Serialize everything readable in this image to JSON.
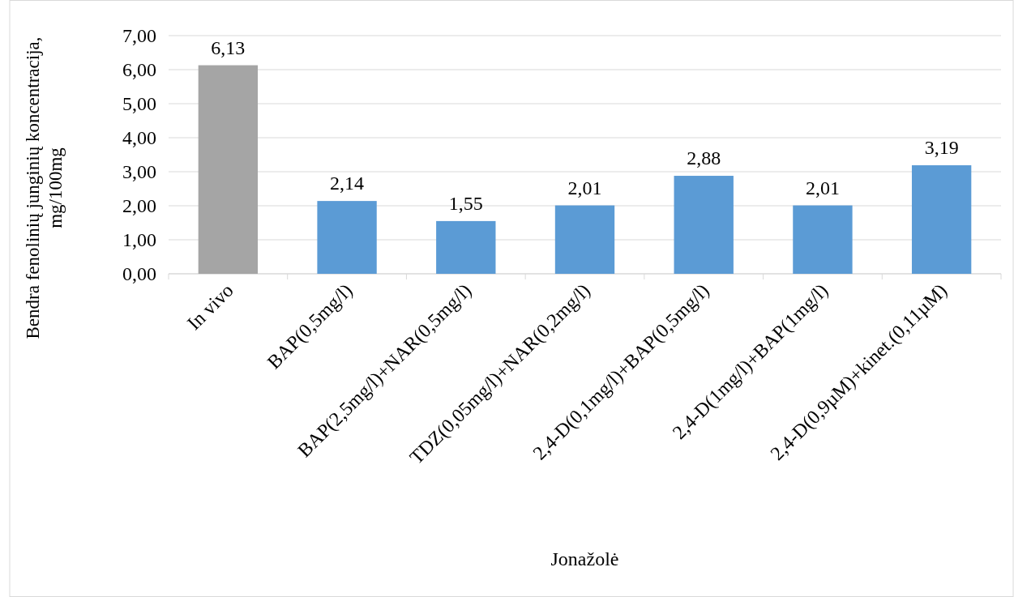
{
  "chart_data": {
    "type": "bar",
    "xlabel": "Jonažolė",
    "ylabel": "Bendra fenolinių junginių koncentracija, mg/100mg",
    "categories": [
      "In vivo",
      "BAP(0,5mg/l)",
      "BAP(2,5mg/l)+NAR(0,5mg/l)",
      "TDZ(0,05mg/l)+NAR(0,2mg/l)",
      "2,4-D(0,1mg/l)+BAP(0,5mg/l)",
      "2,4-D(1mg/l)+BAP(1mg/l)",
      "2,4-D(0,9µM)+kinet.(0,11µM)"
    ],
    "values": [
      6.13,
      2.14,
      1.55,
      2.01,
      2.88,
      2.01,
      3.19
    ],
    "colors": [
      "#a5a5a5",
      "#5b9bd5",
      "#5b9bd5",
      "#5b9bd5",
      "#5b9bd5",
      "#5b9bd5",
      "#5b9bd5"
    ],
    "value_labels": [
      "6,13",
      "2,14",
      "1,55",
      "2,01",
      "2,88",
      "2,01",
      "3,19"
    ],
    "ylim": [
      0,
      7
    ],
    "yticks": [
      {
        "value": 0,
        "label": "0,00"
      },
      {
        "value": 1,
        "label": "1,00"
      },
      {
        "value": 2,
        "label": "2,00"
      },
      {
        "value": 3,
        "label": "3,00"
      },
      {
        "value": 4,
        "label": "4,00"
      },
      {
        "value": 5,
        "label": "5,00"
      },
      {
        "value": 6,
        "label": "6,00"
      },
      {
        "value": 7,
        "label": "7,00"
      }
    ],
    "grid": "y"
  }
}
